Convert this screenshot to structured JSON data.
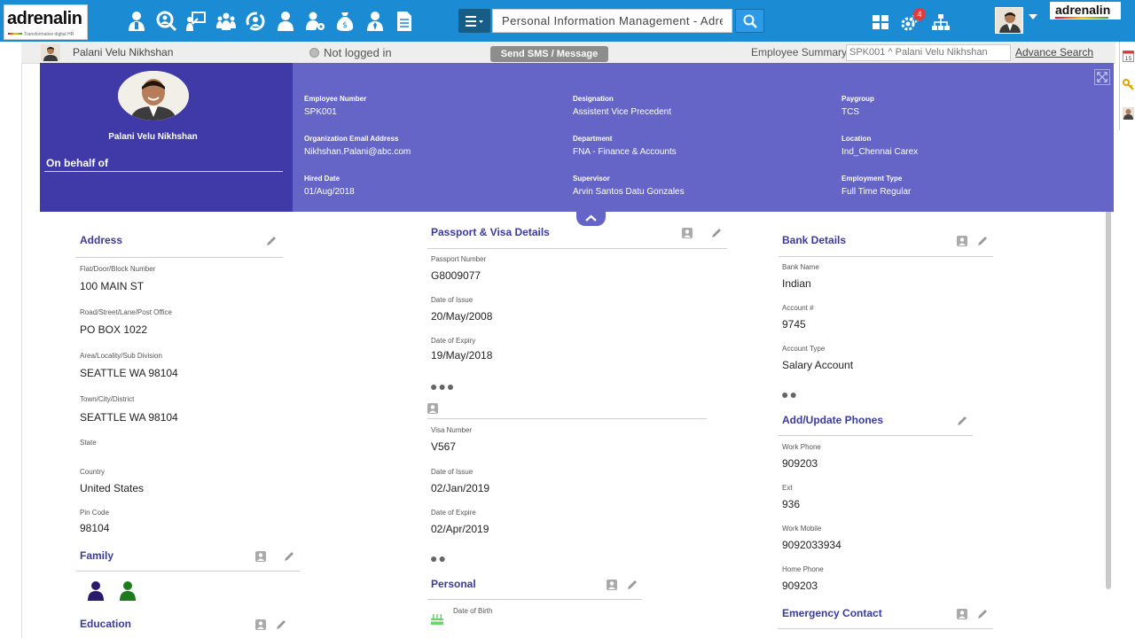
{
  "header": {
    "brand": "adrenalin",
    "tagline": "Transformative digital HR",
    "brand_right": "adrenalin",
    "search_value": "Personal Information Management - Adren",
    "notification_count": "4",
    "nav_icons": [
      "employee-icon",
      "search-people-icon",
      "presentation-icon",
      "group-icon",
      "refresh-cycle-icon",
      "person-icon",
      "user-settings-icon",
      "money-bag-icon",
      "user-tie-icon",
      "document-icon"
    ]
  },
  "subbar": {
    "employee_name": "Palani Velu Nikhshan",
    "login_status": "Not logged in",
    "sms_button": "Send SMS / Message",
    "summary_label": "Employee Summary:",
    "summary_value": "SPK001 ^ Palani Velu Nikhshan",
    "advance_search": "Advance Search"
  },
  "profile": {
    "name": "Palani Velu Nikhshan",
    "on_behalf": "On behalf of",
    "fields": [
      {
        "label": "Employee Number",
        "value": "SPK001"
      },
      {
        "label": "Designation",
        "value": "Assistent Vice Precedent"
      },
      {
        "label": "Paygroup",
        "value": "TCS"
      },
      {
        "label": "Organization Email Address",
        "value": "Nikhshan.Palani@abc.com"
      },
      {
        "label": "Department",
        "value": "FNA - Finance & Accounts"
      },
      {
        "label": "Location",
        "value": "Ind_Chennai Carex"
      },
      {
        "label": "Hired Date",
        "value": "01/Aug/2018"
      },
      {
        "label": "Supervisor",
        "value": "Arvin Santos Datu Gonzales"
      },
      {
        "label": "Employment Type",
        "value": "Full Time Regular"
      }
    ]
  },
  "address": {
    "title": "Address",
    "fields": [
      {
        "label": "Flat/Door/Block Number",
        "value": "100 MAIN ST"
      },
      {
        "label": "Road/Street/Lane/Post Office",
        "value": "PO BOX 1022"
      },
      {
        "label": "Area/Locality/Sub Division",
        "value": "SEATTLE WA 98104"
      },
      {
        "label": "Town/City/District",
        "value": "SEATTLE WA 98104"
      },
      {
        "label": "State",
        "value": ""
      },
      {
        "label": "Country",
        "value": "United States"
      },
      {
        "label": "Pin Code",
        "value": "98104"
      }
    ]
  },
  "family": {
    "title": "Family"
  },
  "education": {
    "title": "Education"
  },
  "passport": {
    "title": "Passport & Visa Details",
    "fields": [
      {
        "label": "Passport Number",
        "value": "G8009077"
      },
      {
        "label": "Date of Issue",
        "value": "20/May/2008"
      },
      {
        "label": "Date of Expiry",
        "value": "19/May/2018"
      }
    ],
    "more": "●●●",
    "visa_fields": [
      {
        "label": "Visa Number",
        "value": "V567"
      },
      {
        "label": "Date of Issue",
        "value": "02/Jan/2019"
      },
      {
        "label": "Date of Expire",
        "value": "02/Apr/2019"
      }
    ],
    "visa_more": "●●"
  },
  "personal": {
    "title": "Personal",
    "fields": [
      {
        "label": "Date of Birth",
        "value": ""
      }
    ]
  },
  "bank": {
    "title": "Bank Details",
    "fields": [
      {
        "label": "Bank Name",
        "value": "Indian"
      },
      {
        "label": "Account #",
        "value": "9745"
      },
      {
        "label": "Account Type",
        "value": "Salary Account"
      }
    ],
    "more": "●●"
  },
  "phones": {
    "title": "Add/Update Phones",
    "fields": [
      {
        "label": "Work Phone",
        "value": "909203"
      },
      {
        "label": "Ext",
        "value": "936"
      },
      {
        "label": "Work Mobile",
        "value": "9092033934"
      },
      {
        "label": "Home Phone",
        "value": "909203"
      }
    ]
  },
  "emergency": {
    "title": "Emergency Contact"
  },
  "colors": {
    "topbar": "#1b8bd4",
    "profile_dark": "#3f3aa8",
    "profile_light": "#6565c8",
    "section_title": "#3a3aa0"
  }
}
